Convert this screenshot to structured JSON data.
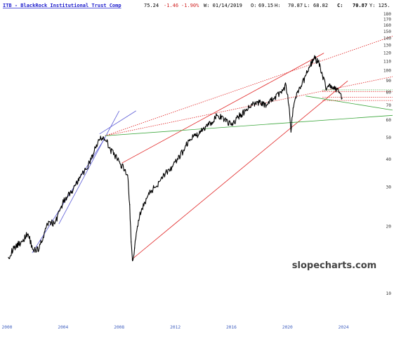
{
  "header": {
    "symbol_name": "ITB - BlackRock Institutional Trust Comp",
    "last": "75.24",
    "change": "-1.46",
    "change_pct": "-1.90%",
    "date_label": "W: 01/14/2019",
    "open_label": "O:",
    "open": "69.15",
    "high_label": "H:",
    "high": "70.87",
    "low_label": "L:",
    "low": "68.82",
    "close_label": "C:",
    "close": "70.87",
    "extra": "Y: 125."
  },
  "watermark": "slopecharts.com",
  "colors": {
    "price": "#000000",
    "channel_blue": "#5b5bd6",
    "trend_red": "#e02020",
    "support_green": "#3aa63a",
    "header_link": "#1a1acc",
    "negative": "#d02020",
    "axis_text": "#3f5fbf"
  },
  "chart_data": {
    "type": "line",
    "title": "ITB - BlackRock Institutional Trust Comp",
    "scale": "log",
    "xlabel": "",
    "ylabel": "",
    "xlim": [
      1999.5,
      2027.6
    ],
    "ylim": [
      7.8,
      185
    ],
    "x_ticks": [
      "2000",
      "2004",
      "2008",
      "2012",
      "2016",
      "2020",
      "2024"
    ],
    "y_ticks": [
      180,
      170,
      160,
      150,
      140,
      130,
      120,
      110,
      100,
      90,
      80,
      70,
      60,
      50,
      40,
      30,
      20,
      10
    ],
    "grid": false,
    "legend": "none",
    "series": [
      {
        "x": [
          2000.1,
          2000.5,
          2001.0,
          2001.5,
          2001.9,
          2002.3,
          2002.7,
          2003.0,
          2003.4,
          2003.8,
          2004.2,
          2004.7,
          2005.2,
          2005.6,
          2006.0,
          2006.3,
          2006.6,
          2006.9,
          2007.1,
          2007.3,
          2007.6,
          2007.9,
          2008.1,
          2008.4,
          2008.6,
          2008.75,
          2008.85,
          2008.95,
          2009.1,
          2009.3,
          2009.6,
          2010.0,
          2010.3,
          2010.6,
          2011.0,
          2011.4,
          2011.8,
          2012.2,
          2012.6,
          2013.0,
          2013.4,
          2013.7,
          2014.0,
          2014.5,
          2015.0,
          2015.5,
          2016.0,
          2016.5,
          2017.0,
          2017.5,
          2018.0,
          2018.5,
          2019.0,
          2019.5,
          2019.9,
          2020.1,
          2020.25,
          2020.4,
          2020.7,
          2021.0,
          2021.3,
          2021.6,
          2021.9,
          2022.2,
          2022.5,
          2022.8,
          2023.1,
          2023.4,
          2023.7,
          2023.9
        ],
        "y": [
          14.5,
          16.0,
          17.0,
          18.5,
          15.5,
          16.0,
          19.0,
          21.0,
          20.5,
          24.0,
          27.0,
          29.0,
          33.0,
          36.0,
          40.0,
          45.0,
          49.0,
          50.0,
          48.0,
          45.0,
          42.0,
          40.0,
          38.0,
          36.0,
          34.0,
          25.0,
          17.0,
          14.0,
          16.0,
          20.0,
          24.0,
          27.0,
          29.0,
          30.0,
          33.0,
          35.0,
          37.0,
          40.0,
          44.0,
          49.0,
          51.0,
          52.0,
          55.0,
          58.0,
          63.0,
          60.0,
          57.0,
          62.0,
          66.0,
          70.0,
          72.0,
          70.0,
          75.0,
          80.0,
          86.0,
          70.0,
          53.0,
          68.0,
          80.0,
          85.0,
          95.0,
          105.0,
          114.0,
          110.0,
          95.0,
          83.0,
          86.0,
          82.0,
          80.0,
          75.2
        ]
      }
    ],
    "trendlines": [
      {
        "color": "blue",
        "style": "solid",
        "from": [
          2001.8,
          15.2
        ],
        "to": [
          2007.0,
          50.0
        ]
      },
      {
        "color": "blue",
        "style": "solid",
        "from": [
          2003.7,
          20.5
        ],
        "to": [
          2008.0,
          66.0
        ]
      },
      {
        "color": "blue",
        "style": "solid",
        "from": [
          2006.6,
          52.0
        ],
        "to": [
          2009.2,
          66.0
        ]
      },
      {
        "color": "red",
        "style": "solid",
        "from": [
          2008.9,
          14.2
        ],
        "to": [
          2024.3,
          90.0
        ]
      },
      {
        "color": "red",
        "style": "solid",
        "from": [
          2008.2,
          38.5
        ],
        "to": [
          2022.6,
          120.0
        ]
      },
      {
        "color": "red",
        "style": "dotted",
        "from": [
          2007.0,
          51.0
        ],
        "to": [
          2027.5,
          143.0
        ]
      },
      {
        "color": "red",
        "style": "dotted",
        "from": [
          2007.0,
          51.0
        ],
        "to": [
          2027.5,
          94.0
        ]
      },
      {
        "color": "green",
        "style": "solid",
        "from": [
          2007.0,
          51.0
        ],
        "to": [
          2027.5,
          63.0
        ]
      },
      {
        "color": "green",
        "style": "solid",
        "from": [
          2021.3,
          77.0
        ],
        "to": [
          2027.5,
          66.5
        ]
      },
      {
        "color": "red",
        "style": "dotted",
        "from": [
          2022.5,
          80.5
        ],
        "to": [
          2027.5,
          80.5
        ]
      },
      {
        "color": "green",
        "style": "dotted",
        "from": [
          2022.5,
          82.0
        ],
        "to": [
          2027.5,
          82.0
        ]
      },
      {
        "color": "red",
        "style": "dotted",
        "from": [
          2022.5,
          76.0
        ],
        "to": [
          2027.5,
          76.0
        ]
      },
      {
        "color": "red",
        "style": "dotted",
        "from": [
          2022.5,
          73.5
        ],
        "to": [
          2027.5,
          73.5
        ]
      }
    ]
  }
}
